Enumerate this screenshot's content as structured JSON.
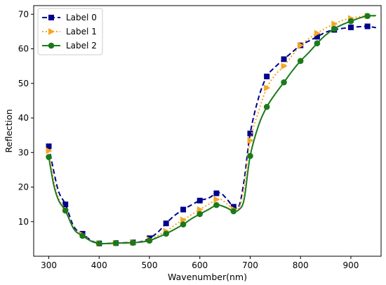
{
  "chart_data": {
    "type": "line",
    "xlabel": "Wavenumber(nm)",
    "ylabel": "Reflection",
    "xlim": [
      270,
      960
    ],
    "ylim": [
      0,
      72.5
    ],
    "xticks": [
      "300",
      "400",
      "500",
      "600",
      "700",
      "800",
      "900"
    ],
    "yticks": [
      "10",
      "20",
      "30",
      "40",
      "50",
      "60",
      "70"
    ],
    "grid": false,
    "legend_position": "top-left",
    "series": [
      {
        "name": "Label 0",
        "color": "#00008b",
        "line_style": "dashed",
        "marker": "square",
        "x": [
          300,
          310,
          320,
          333,
          350,
          367,
          385,
          400,
          420,
          433,
          450,
          467,
          483,
          500,
          517,
          533,
          550,
          567,
          583,
          600,
          617,
          633,
          643,
          655,
          667,
          678,
          688,
          700,
          717,
          733,
          750,
          767,
          783,
          800,
          817,
          833,
          850,
          867,
          883,
          900,
          917,
          933,
          950
        ],
        "y": [
          31.8,
          24.5,
          18.5,
          15.0,
          8.5,
          6.5,
          4.5,
          3.7,
          3.7,
          3.8,
          3.9,
          4.0,
          4.2,
          5.2,
          7.0,
          9.5,
          11.8,
          13.5,
          14.8,
          16.1,
          16.8,
          18.2,
          18.1,
          16.3,
          14.3,
          14.6,
          22.0,
          35.5,
          46.0,
          52.0,
          54.8,
          57.0,
          59.0,
          61.0,
          62.3,
          63.5,
          64.8,
          65.5,
          65.9,
          66.2,
          66.4,
          66.5,
          66.1
        ],
        "marker_indices": [
          0,
          3,
          5,
          7,
          9,
          11,
          13,
          15,
          17,
          19,
          21,
          24,
          27,
          29,
          31,
          33,
          35,
          37,
          39,
          41
        ]
      },
      {
        "name": "Label 1",
        "color": "#f5a623",
        "line_style": "dotted",
        "marker": "triangle-right",
        "x": [
          300,
          310,
          320,
          333,
          350,
          367,
          385,
          400,
          420,
          433,
          450,
          467,
          483,
          500,
          517,
          533,
          550,
          567,
          583,
          600,
          617,
          633,
          643,
          655,
          667,
          678,
          688,
          700,
          717,
          733,
          750,
          767,
          783,
          800,
          817,
          833,
          850,
          867,
          883,
          900,
          917,
          933,
          950
        ],
        "y": [
          30.5,
          22.0,
          16.5,
          13.5,
          8.0,
          6.2,
          4.4,
          3.7,
          3.7,
          3.8,
          3.9,
          4.0,
          4.1,
          4.8,
          6.0,
          7.2,
          9.0,
          10.5,
          12.0,
          13.5,
          15.0,
          16.4,
          16.4,
          15.0,
          13.6,
          14.1,
          20.0,
          33.5,
          42.0,
          48.7,
          52.5,
          55.0,
          58.0,
          61.0,
          63.0,
          64.5,
          66.0,
          67.2,
          68.2,
          68.8,
          69.3,
          69.5,
          69.4
        ],
        "marker_indices": [
          0,
          3,
          5,
          7,
          9,
          11,
          13,
          15,
          17,
          19,
          21,
          24,
          27,
          29,
          31,
          33,
          35,
          37,
          39,
          41
        ]
      },
      {
        "name": "Label 2",
        "color": "#1a7a1a",
        "line_style": "solid",
        "marker": "circle",
        "x": [
          300,
          310,
          320,
          333,
          350,
          367,
          385,
          400,
          420,
          433,
          450,
          467,
          483,
          500,
          517,
          533,
          550,
          567,
          583,
          600,
          617,
          633,
          643,
          655,
          667,
          678,
          688,
          700,
          717,
          733,
          750,
          767,
          783,
          800,
          817,
          833,
          850,
          867,
          883,
          900,
          917,
          933,
          950
        ],
        "y": [
          28.7,
          20.5,
          16.0,
          13.2,
          7.8,
          5.9,
          4.3,
          3.7,
          3.7,
          3.8,
          3.8,
          3.9,
          4.1,
          4.5,
          5.5,
          6.5,
          7.8,
          9.2,
          10.8,
          12.2,
          13.5,
          14.8,
          14.6,
          13.9,
          13.0,
          13.5,
          16.5,
          29.0,
          38.0,
          43.2,
          47.0,
          50.3,
          53.5,
          56.5,
          59.0,
          61.6,
          64.0,
          65.8,
          67.0,
          68.0,
          68.9,
          69.5,
          69.6
        ],
        "marker_indices": [
          0,
          3,
          5,
          7,
          9,
          11,
          13,
          15,
          17,
          19,
          21,
          24,
          27,
          29,
          31,
          33,
          35,
          37,
          39,
          41
        ]
      }
    ]
  }
}
